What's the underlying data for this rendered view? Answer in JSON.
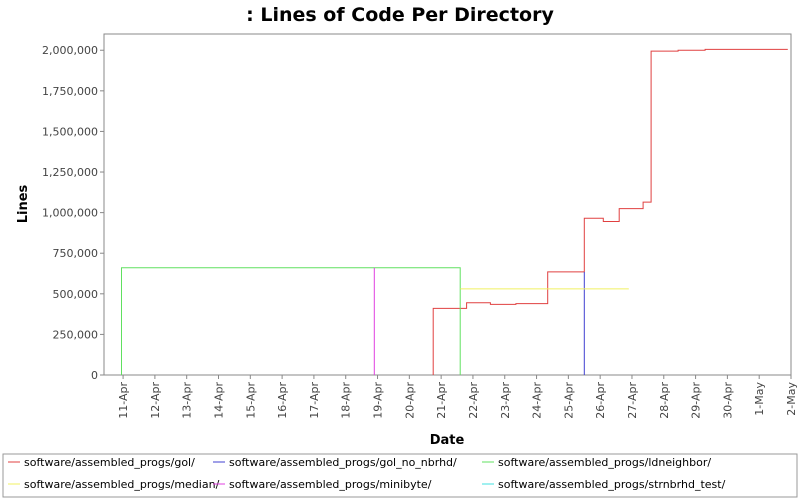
{
  "chart_data": {
    "type": "line",
    "title": ": Lines of Code Per Directory",
    "xlabel": "Date",
    "ylabel": "Lines",
    "x_ticks": [
      "11-Apr",
      "12-Apr",
      "13-Apr",
      "14-Apr",
      "15-Apr",
      "16-Apr",
      "17-Apr",
      "18-Apr",
      "19-Apr",
      "20-Apr",
      "21-Apr",
      "22-Apr",
      "23-Apr",
      "24-Apr",
      "25-Apr",
      "26-Apr",
      "27-Apr",
      "28-Apr",
      "29-Apr",
      "30-Apr",
      "1-May",
      "2-May"
    ],
    "xlim": [
      -0.6,
      21.0
    ],
    "ylim": [
      0,
      2100000
    ],
    "y_ticks": [
      0,
      250000,
      500000,
      750000,
      1000000,
      1250000,
      1500000,
      1750000,
      2000000
    ],
    "y_tick_labels": [
      "0",
      "250,000",
      "500,000",
      "750,000",
      "1,000,000",
      "1,250,000",
      "1,500,000",
      "1,750,000",
      "2,000,000"
    ],
    "grid": false,
    "legend_position": "bottom",
    "series": [
      {
        "name": "software/assembled_progs/gol/",
        "color": "#e04040",
        "points": [
          [
            9.75,
            0
          ],
          [
            9.75,
            410000
          ],
          [
            10.8,
            410000
          ],
          [
            10.8,
            445000
          ],
          [
            11.55,
            445000
          ],
          [
            11.55,
            435000
          ],
          [
            12.35,
            435000
          ],
          [
            12.35,
            440000
          ],
          [
            13.35,
            440000
          ],
          [
            13.35,
            635000
          ],
          [
            14.5,
            635000
          ],
          [
            14.5,
            965000
          ],
          [
            15.1,
            965000
          ],
          [
            15.1,
            945000
          ],
          [
            15.6,
            945000
          ],
          [
            15.6,
            1025000
          ],
          [
            16.35,
            1025000
          ],
          [
            16.35,
            1065000
          ],
          [
            16.6,
            1065000
          ],
          [
            16.6,
            1995000
          ],
          [
            17.45,
            1995000
          ],
          [
            17.45,
            2000000
          ],
          [
            18.3,
            2000000
          ],
          [
            18.3,
            2005000
          ],
          [
            20.9,
            2005000
          ]
        ]
      },
      {
        "name": "software/assembled_progs/gol_no_nbrhd/",
        "color": "#4040d0",
        "points": [
          [
            14.5,
            0
          ],
          [
            14.5,
            635000
          ]
        ]
      },
      {
        "name": "software/assembled_progs/ldneighbor/",
        "color": "#60e060",
        "points": [
          [
            -0.05,
            0
          ],
          [
            -0.05,
            660000
          ],
          [
            10.6,
            660000
          ],
          [
            10.6,
            0
          ]
        ]
      },
      {
        "name": "software/assembled_progs/median/",
        "color": "#f0f060",
        "points": [
          [
            10.6,
            530000
          ],
          [
            15.9,
            530000
          ]
        ]
      },
      {
        "name": "software/assembled_progs/minibyte/",
        "color": "#e040e0",
        "points": [
          [
            7.9,
            0
          ],
          [
            7.9,
            660000
          ]
        ]
      },
      {
        "name": "software/assembled_progs/strnbrhd_test/",
        "color": "#40e0e0",
        "points": []
      }
    ]
  }
}
